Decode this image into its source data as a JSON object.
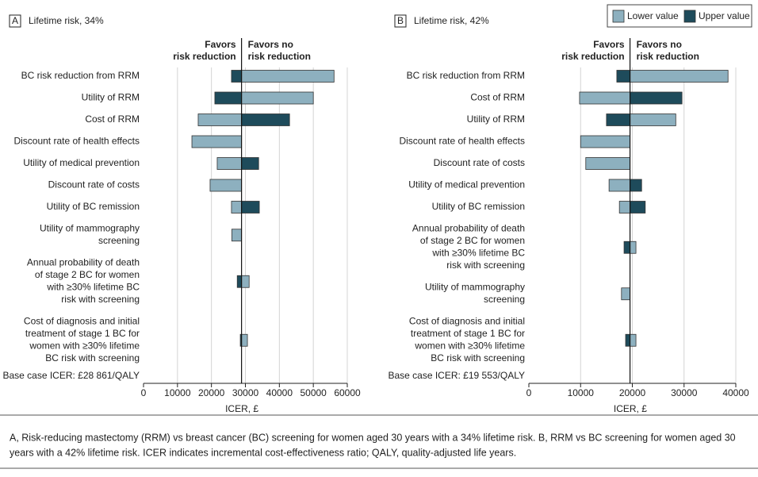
{
  "chart_data": [
    {
      "type": "tornado",
      "panel": "A",
      "title": "Lifetime risk, 34%",
      "left_header": [
        "Favors",
        "risk reduction"
      ],
      "right_header": [
        "Favors no",
        "risk reduction"
      ],
      "categories": [
        [
          "BC risk reduction from RRM"
        ],
        [
          "Utility of RRM"
        ],
        [
          "Cost of RRM"
        ],
        [
          "Discount rate of health effects"
        ],
        [
          "Utility of medical prevention"
        ],
        [
          "Discount rate of costs"
        ],
        [
          "Utility of BC remission"
        ],
        [
          "Utility of mammography",
          "screening"
        ],
        [
          "Annual probability of death",
          "of stage 2 BC for women",
          "with ≥30% lifetime BC",
          "risk with screening"
        ],
        [
          "Cost of diagnosis and initial",
          "treatment of stage 1 BC for",
          "women with ≥30% lifetime",
          "BC risk with screening"
        ]
      ],
      "series": [
        {
          "name": "Lower value",
          "color": "#8db0bf",
          "values": [
            56100,
            50000,
            16100,
            14250,
            21700,
            19600,
            25900,
            26000,
            31100,
            30600
          ]
        },
        {
          "name": "Upper value",
          "color": "#1e4b5b",
          "values": [
            25900,
            21000,
            43000,
            null,
            33900,
            null,
            34100,
            null,
            27600,
            28500
          ]
        }
      ],
      "base_value": 28861,
      "base_label": "Base case ICER: £28 861/QALY",
      "xlabel": "ICER, £",
      "xlim": [
        0,
        60000
      ],
      "xticks": [
        0,
        10000,
        20000,
        30000,
        40000,
        50000,
        60000
      ],
      "grid": true
    },
    {
      "type": "tornado",
      "panel": "B",
      "title": "Lifetime risk, 42%",
      "left_header": [
        "Favors",
        "risk reduction"
      ],
      "right_header": [
        "Favors no",
        "risk reduction"
      ],
      "categories": [
        [
          "BC risk reduction from RRM"
        ],
        [
          "Cost of RRM"
        ],
        [
          "Utility of RRM"
        ],
        [
          "Discount rate of health effects"
        ],
        [
          "Discount rate of costs"
        ],
        [
          "Utility of medical prevention"
        ],
        [
          "Utility of BC remission"
        ],
        [
          "Annual probability of death",
          "of stage 2 BC for women",
          "with ≥30% lifetime BC",
          "risk with screening"
        ],
        [
          "Utility of mammography",
          "screening"
        ],
        [
          "Cost of diagnosis and initial",
          "treatment of stage 1 BC for",
          "women with ≥30% lifetime",
          "BC risk with screening"
        ]
      ],
      "series": [
        {
          "name": "Lower value",
          "color": "#8db0bf",
          "values": [
            38500,
            9800,
            28400,
            10000,
            11000,
            15500,
            17500,
            20700,
            17900,
            20700
          ]
        },
        {
          "name": "Upper value",
          "color": "#1e4b5b",
          "values": [
            17000,
            29600,
            15000,
            null,
            null,
            21800,
            22500,
            18400,
            null,
            18700
          ]
        }
      ],
      "base_value": 19553,
      "base_label": "Base case ICER: £19 553/QALY",
      "xlabel": "ICER, £",
      "xlim": [
        0,
        40000
      ],
      "xticks": [
        0,
        10000,
        20000,
        30000,
        40000
      ],
      "grid": true,
      "legend": "top-right"
    }
  ],
  "caption": [
    "A, Risk-reducing mastectomy (RRM) vs breast cancer (BC) screening for women aged 30 years with a 34% lifetime risk. B, RRM vs BC screening for women aged 30",
    "years with a 42% lifetime risk. ICER indicates incremental cost-effectiveness ratio; QALY, quality-adjusted life years."
  ]
}
